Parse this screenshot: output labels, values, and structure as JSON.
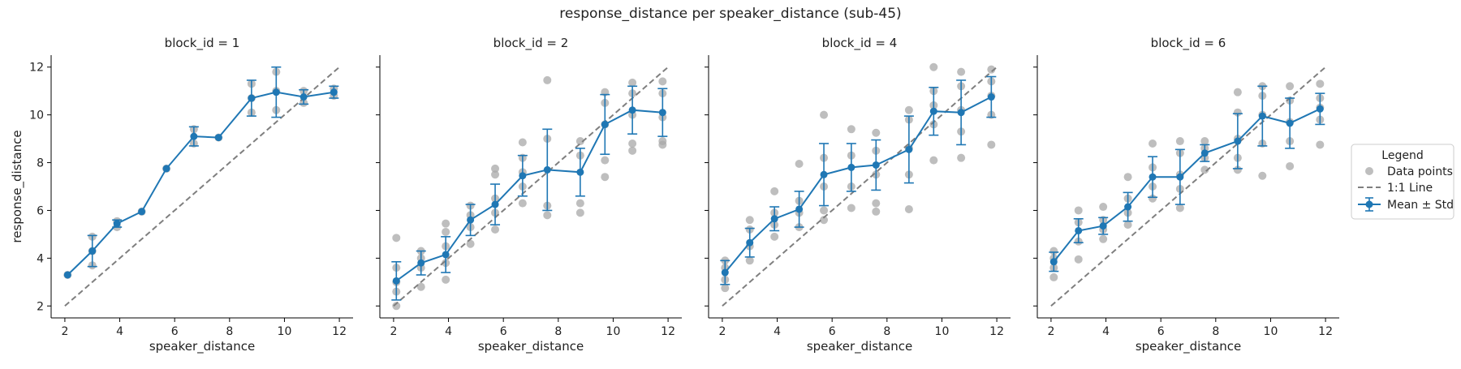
{
  "figure": {
    "title": "response_distance per speaker_distance (sub-45)"
  },
  "legend": {
    "title": "Legend",
    "placement": "center-right",
    "entries": [
      "Data points",
      "1:1 Line",
      "Mean ± Std"
    ]
  },
  "colors": {
    "mean": "#1f77b4",
    "points": "#a8a8a8",
    "identity": "#7f7f7f"
  },
  "chart_data": [
    {
      "type": "scatter",
      "title": "block_id = 1",
      "xlabel": "speaker_distance",
      "ylabel": "response_distance",
      "xlim": [
        1.5,
        12.5
      ],
      "ylim": [
        1.5,
        12.5
      ],
      "xticks": [
        2,
        4,
        6,
        8,
        10,
        12
      ],
      "yticks": [
        2,
        4,
        6,
        8,
        10,
        12
      ],
      "grid": false,
      "identity_line": [
        [
          2,
          2
        ],
        [
          12,
          12
        ]
      ],
      "mean": {
        "x": [
          2.1,
          3.0,
          3.9,
          4.8,
          5.7,
          6.7,
          7.6,
          8.8,
          9.7,
          10.7,
          11.8
        ],
        "y": [
          3.3,
          4.3,
          5.45,
          5.95,
          7.75,
          9.1,
          9.05,
          10.7,
          10.95,
          10.75,
          10.95
        ],
        "std": [
          0.0,
          0.65,
          0.15,
          0.0,
          0.0,
          0.4,
          0.0,
          0.75,
          1.05,
          0.3,
          0.25
        ]
      },
      "points": {
        "x": [
          2.1,
          3.0,
          3.0,
          3.0,
          3.9,
          3.9,
          4.8,
          5.7,
          6.7,
          6.7,
          7.6,
          8.8,
          8.8,
          8.8,
          9.7,
          9.7,
          9.7,
          10.7,
          10.7,
          11.8,
          11.8
        ],
        "y": [
          3.3,
          3.7,
          4.3,
          4.9,
          5.3,
          5.55,
          5.95,
          7.75,
          8.8,
          9.4,
          9.05,
          10.1,
          10.7,
          11.3,
          10.2,
          11.0,
          11.8,
          10.5,
          11.0,
          10.8,
          11.1
        ]
      }
    },
    {
      "type": "scatter",
      "title": "block_id = 2",
      "xlabel": "speaker_distance",
      "ylabel": "",
      "xlim": [
        1.5,
        12.5
      ],
      "ylim": [
        1.5,
        12.5
      ],
      "xticks": [
        2,
        4,
        6,
        8,
        10,
        12
      ],
      "yticks": [
        2,
        4,
        6,
        8,
        10,
        12
      ],
      "grid": false,
      "identity_line": [
        [
          2,
          2
        ],
        [
          12,
          12
        ]
      ],
      "mean": {
        "x": [
          2.1,
          3.0,
          3.9,
          4.8,
          5.7,
          6.7,
          7.6,
          8.8,
          9.7,
          10.7,
          11.8
        ],
        "y": [
          3.05,
          3.8,
          4.15,
          5.6,
          6.25,
          7.45,
          7.7,
          7.6,
          9.6,
          10.2,
          10.1
        ],
        "std": [
          0.8,
          0.5,
          0.75,
          0.65,
          0.85,
          0.85,
          1.7,
          1.0,
          1.25,
          1.0,
          1.0
        ]
      },
      "points": {
        "x": [
          2.1,
          2.1,
          2.1,
          2.1,
          2.1,
          3.0,
          3.0,
          3.0,
          3.0,
          3.9,
          3.9,
          3.9,
          3.9,
          3.9,
          4.8,
          4.8,
          4.8,
          4.8,
          5.7,
          5.7,
          5.7,
          5.7,
          5.7,
          6.7,
          6.7,
          6.7,
          6.7,
          6.7,
          7.6,
          7.6,
          7.6,
          7.6,
          8.8,
          8.8,
          8.8,
          8.8,
          9.7,
          9.7,
          9.7,
          9.7,
          9.7,
          10.7,
          10.7,
          10.7,
          10.7,
          10.7,
          11.8,
          11.8,
          11.8,
          11.8,
          11.8
        ],
        "y": [
          2.0,
          2.6,
          3.0,
          3.6,
          4.85,
          2.8,
          3.6,
          4.0,
          4.3,
          3.1,
          3.8,
          4.5,
          5.1,
          5.45,
          4.6,
          5.3,
          5.8,
          6.2,
          5.2,
          5.9,
          6.5,
          7.5,
          7.75,
          6.3,
          7.0,
          7.6,
          8.2,
          8.85,
          5.8,
          6.2,
          9.0,
          11.45,
          5.9,
          6.3,
          8.3,
          8.9,
          7.4,
          8.1,
          9.6,
          10.5,
          10.95,
          8.5,
          8.8,
          10.0,
          10.9,
          11.35,
          8.75,
          8.9,
          9.9,
          10.9,
          11.4
        ]
      }
    },
    {
      "type": "scatter",
      "title": "block_id = 4",
      "xlabel": "speaker_distance",
      "ylabel": "",
      "xlim": [
        1.5,
        12.5
      ],
      "ylim": [
        1.5,
        12.5
      ],
      "xticks": [
        2,
        4,
        6,
        8,
        10,
        12
      ],
      "yticks": [
        2,
        4,
        6,
        8,
        10,
        12
      ],
      "grid": false,
      "identity_line": [
        [
          2,
          2
        ],
        [
          12,
          12
        ]
      ],
      "mean": {
        "x": [
          2.1,
          3.0,
          3.9,
          4.8,
          5.7,
          6.7,
          7.6,
          8.8,
          9.7,
          10.7,
          11.8
        ],
        "y": [
          3.4,
          4.65,
          5.65,
          6.05,
          7.5,
          7.8,
          7.9,
          8.55,
          10.15,
          10.1,
          10.75
        ],
        "std": [
          0.5,
          0.6,
          0.5,
          0.75,
          1.3,
          1.0,
          1.05,
          1.4,
          1.0,
          1.35,
          0.85
        ]
      },
      "points": {
        "x": [
          2.1,
          2.1,
          2.1,
          2.1,
          3.0,
          3.0,
          3.0,
          3.0,
          3.9,
          3.9,
          3.9,
          3.9,
          4.8,
          4.8,
          4.8,
          4.8,
          5.7,
          5.7,
          5.7,
          5.7,
          5.7,
          6.7,
          6.7,
          6.7,
          6.7,
          7.6,
          7.6,
          7.6,
          7.6,
          7.6,
          8.8,
          8.8,
          8.8,
          8.8,
          8.8,
          9.7,
          9.7,
          9.7,
          9.7,
          9.7,
          10.7,
          10.7,
          10.7,
          10.7,
          10.7,
          11.8,
          11.8,
          11.8,
          11.8,
          11.8
        ],
        "y": [
          2.75,
          3.1,
          3.6,
          3.9,
          3.9,
          4.5,
          5.2,
          5.6,
          4.9,
          5.4,
          5.9,
          6.8,
          5.3,
          5.9,
          6.4,
          7.95,
          5.6,
          6.0,
          7.0,
          8.2,
          10.0,
          6.1,
          7.0,
          8.3,
          9.4,
          5.95,
          6.3,
          7.5,
          8.5,
          9.25,
          6.05,
          7.5,
          8.6,
          9.8,
          10.2,
          8.1,
          9.6,
          10.4,
          11.0,
          12.0,
          8.2,
          9.3,
          10.2,
          11.2,
          11.8,
          8.75,
          10.0,
          10.8,
          11.4,
          11.9
        ]
      }
    },
    {
      "type": "scatter",
      "title": "block_id = 6",
      "xlabel": "speaker_distance",
      "ylabel": "",
      "xlim": [
        1.5,
        12.5
      ],
      "ylim": [
        1.5,
        12.5
      ],
      "xticks": [
        2,
        4,
        6,
        8,
        10,
        12
      ],
      "yticks": [
        2,
        4,
        6,
        8,
        10,
        12
      ],
      "grid": false,
      "identity_line": [
        [
          2,
          2
        ],
        [
          12,
          12
        ]
      ],
      "mean": {
        "x": [
          2.1,
          3.0,
          3.9,
          4.8,
          5.7,
          6.7,
          7.6,
          8.8,
          9.7,
          10.7,
          11.8
        ],
        "y": [
          3.85,
          5.15,
          5.35,
          6.15,
          7.4,
          7.4,
          8.4,
          8.9,
          9.95,
          9.65,
          10.25
        ],
        "std": [
          0.4,
          0.5,
          0.35,
          0.6,
          0.85,
          1.15,
          0.35,
          1.15,
          1.25,
          1.05,
          0.65
        ]
      },
      "points": {
        "x": [
          2.1,
          2.1,
          2.1,
          2.1,
          3.0,
          3.0,
          3.0,
          3.0,
          3.9,
          3.9,
          3.9,
          3.9,
          4.8,
          4.8,
          4.8,
          4.8,
          5.7,
          5.7,
          5.7,
          5.7,
          6.7,
          6.7,
          6.7,
          6.7,
          6.7,
          7.6,
          7.6,
          7.6,
          7.6,
          8.8,
          8.8,
          8.8,
          8.8,
          8.8,
          9.7,
          9.7,
          9.7,
          9.7,
          9.7,
          10.7,
          10.7,
          10.7,
          10.7,
          10.7,
          11.8,
          11.8,
          11.8,
          11.8,
          11.8
        ],
        "y": [
          3.2,
          3.6,
          4.0,
          4.3,
          3.95,
          4.7,
          5.5,
          6.0,
          4.8,
          5.2,
          5.6,
          6.15,
          5.4,
          5.9,
          6.5,
          7.4,
          6.5,
          7.0,
          7.8,
          8.8,
          6.1,
          6.9,
          7.5,
          8.4,
          8.9,
          7.7,
          8.2,
          8.6,
          8.9,
          7.7,
          8.2,
          9.0,
          10.1,
          10.95,
          7.45,
          8.8,
          10.0,
          10.8,
          11.2,
          7.85,
          8.9,
          9.7,
          10.6,
          11.2,
          8.75,
          9.8,
          10.3,
          10.7,
          11.3
        ]
      }
    }
  ]
}
